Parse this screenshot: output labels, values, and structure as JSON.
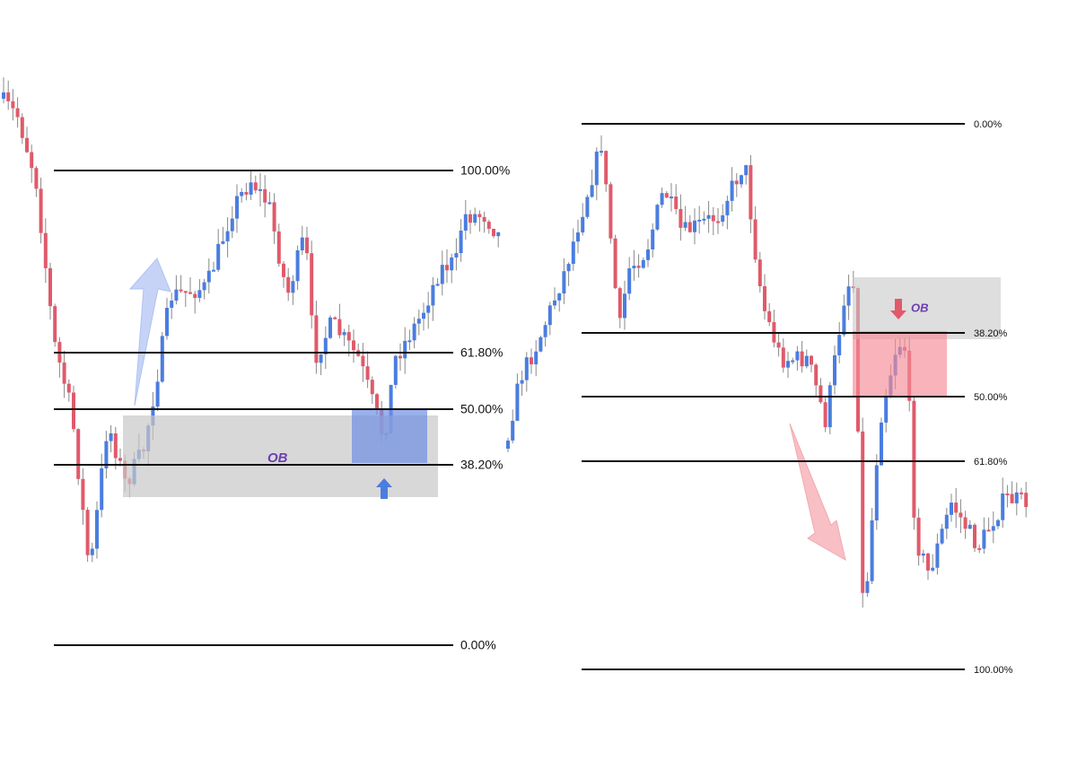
{
  "left_chart": {
    "levels": [
      "100.00%",
      "61.80%",
      "50.00%",
      "38.20%",
      "0.00%"
    ],
    "zone_label": "OB"
  },
  "right_chart": {
    "levels": [
      "0.00%",
      "38.20%",
      "50.00%",
      "61.80%",
      "100.00%"
    ],
    "zone_label": "OB"
  }
}
